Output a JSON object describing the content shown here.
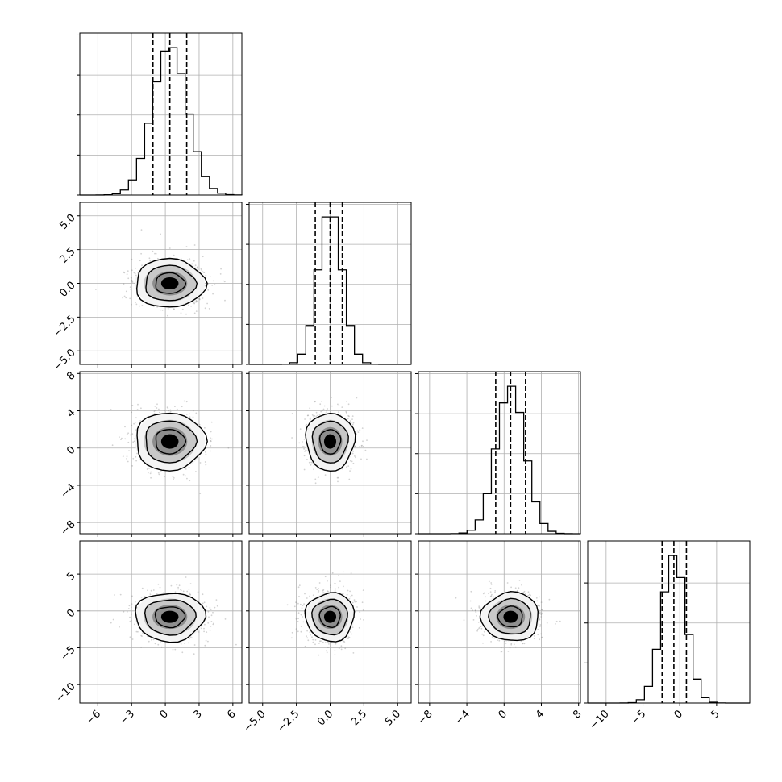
{
  "chart_data": {
    "type": "corner",
    "n_params": 4,
    "grid": true,
    "colors": {
      "line": "#000000",
      "grid": "#b0b0b0",
      "scatter": "#7f7f7f"
    },
    "quantile_lines": "dashed",
    "params": [
      {
        "range": [
          -7.6,
          6.8
        ],
        "x_ticks": [
          -6,
          -3,
          0,
          3,
          6
        ],
        "x_tick_labels": [
          "−6",
          "−3",
          "0",
          "3",
          "6"
        ],
        "mean": 0.4,
        "sd": 1.55,
        "quantiles": [
          -1.1,
          0.4,
          1.9
        ],
        "hist_ymax": 1.0
      },
      {
        "range": [
          -6.0,
          6.0
        ],
        "x_ticks": [
          -5.0,
          -2.5,
          0.0,
          2.5,
          5.0
        ],
        "x_tick_labels": [
          "−5.0",
          "−2.5",
          "0.0",
          "2.5",
          "5.0"
        ],
        "y_ticks": [
          5.0,
          2.5,
          0.0,
          -2.5,
          -5.0
        ],
        "y_tick_labels": [
          "5.0",
          "2.5",
          "0.0",
          "−2.5",
          "−5.0"
        ],
        "mean": 0.0,
        "sd": 0.9,
        "quantiles": [
          -1.1,
          0.0,
          0.9
        ],
        "hist_ymax": 1.0
      },
      {
        "range": [
          -9.2,
          8.2
        ],
        "x_ticks": [
          -8,
          -4,
          0,
          4,
          8
        ],
        "x_tick_labels": [
          "−8",
          "−4",
          "0",
          "4",
          "8"
        ],
        "y_ticks": [
          8,
          4,
          0,
          -4,
          -8
        ],
        "y_tick_labels": [
          "8",
          "4",
          "0",
          "−4",
          "−8"
        ],
        "mean": 0.7,
        "sd": 1.55,
        "quantiles": [
          -0.9,
          0.7,
          2.3
        ],
        "hist_ymax": 1.0
      },
      {
        "range": [
          -12.5,
          9.5
        ],
        "x_ticks": [
          -10,
          -5,
          0,
          5
        ],
        "x_tick_labels": [
          "−10",
          "−5",
          "0",
          "5"
        ],
        "y_ticks": [
          5,
          0,
          -5,
          -10
        ],
        "y_tick_labels": [
          "5",
          "0",
          "−5",
          "−10"
        ],
        "mean": -0.8,
        "sd": 1.65,
        "quantiles": [
          -2.4,
          -0.8,
          0.9
        ],
        "hist_ymax": 1.0
      }
    ],
    "hist_y_tick_count": 4,
    "contour_levels_sigma": [
      0.5,
      1.0,
      1.5,
      2.0
    ]
  }
}
